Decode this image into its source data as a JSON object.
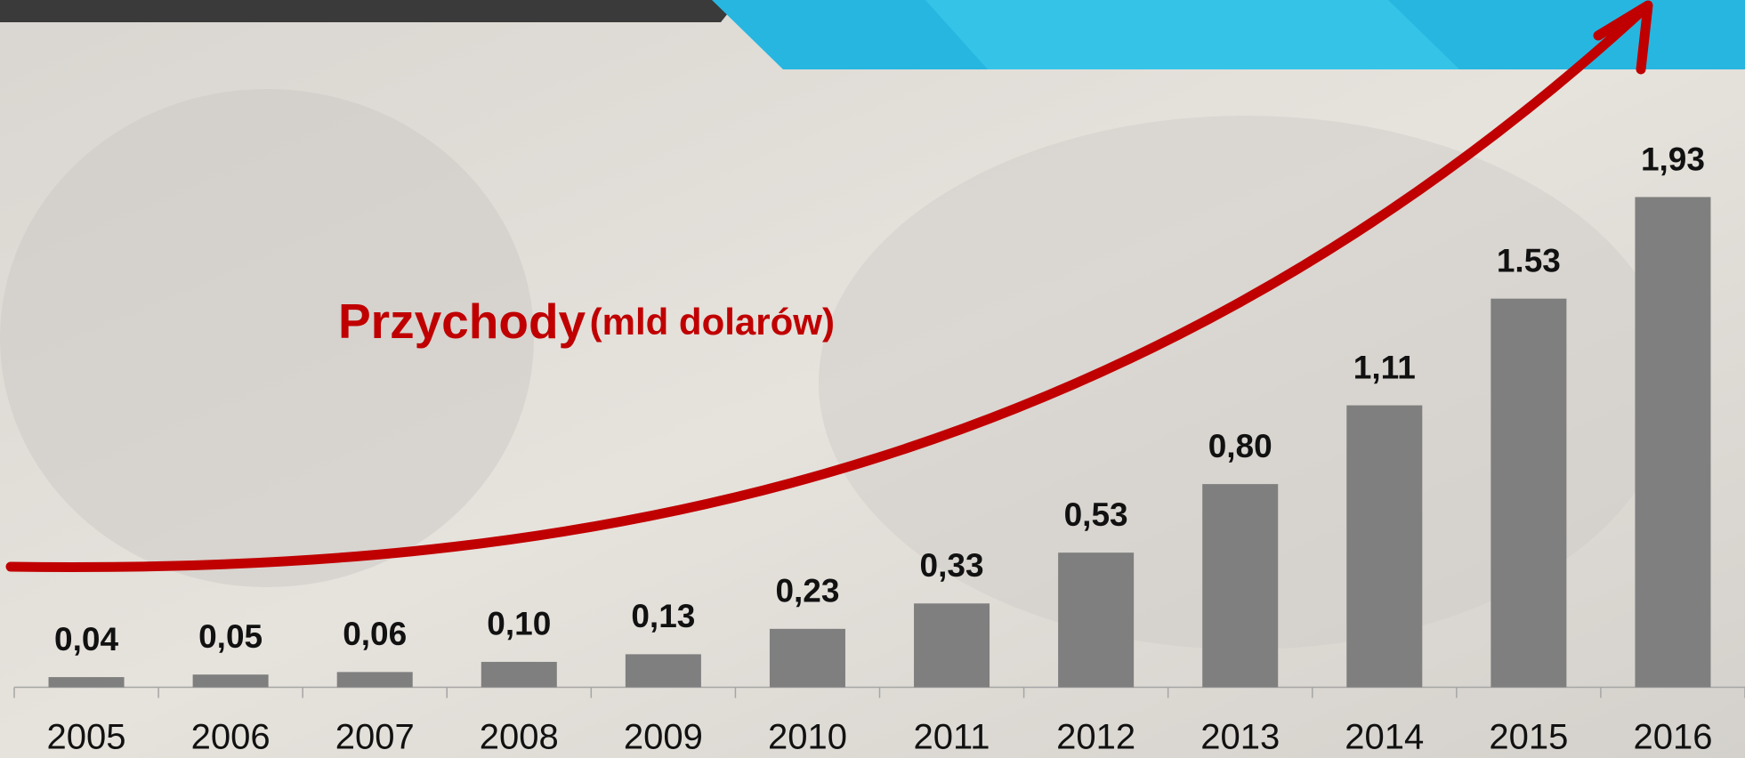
{
  "chart_data": {
    "type": "bar",
    "title": "Przychody",
    "subtitle": "(mld dolarów)",
    "categories": [
      "2005",
      "2006",
      "2007",
      "2008",
      "2009",
      "2010",
      "2011",
      "2012",
      "2013",
      "2014",
      "2015",
      "2016"
    ],
    "values": [
      0.04,
      0.05,
      0.06,
      0.1,
      0.13,
      0.23,
      0.33,
      0.53,
      0.8,
      1.11,
      1.53,
      1.93
    ],
    "value_labels": [
      "0,04",
      "0,05",
      "0,06",
      "0,10",
      "0,13",
      "0,23",
      "0,33",
      "0,53",
      "0,80",
      "1,11",
      "1.53",
      "1,93"
    ],
    "color": "#7f7f7f",
    "ylim": [
      0,
      2.2
    ]
  }
}
